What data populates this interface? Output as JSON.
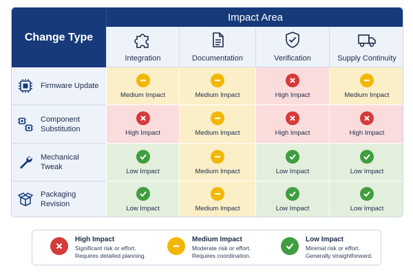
{
  "corner_label": "Change Type",
  "area_title": "Impact Area",
  "columns": [
    {
      "label": "Integration",
      "icon": "puzzle-icon"
    },
    {
      "label": "Documentation",
      "icon": "document-icon"
    },
    {
      "label": "Verification",
      "icon": "shield-check-icon"
    },
    {
      "label": "Supply Continuity",
      "icon": "truck-icon"
    }
  ],
  "rows": [
    {
      "label": "Firmware Update",
      "icon": "chip-icon",
      "cells": [
        {
          "level": "medium",
          "text": "Medium Impact"
        },
        {
          "level": "medium",
          "text": "Medium Impact"
        },
        {
          "level": "high",
          "text": "High Impact"
        },
        {
          "level": "medium",
          "text": "Medium Impact"
        }
      ]
    },
    {
      "label": "Component Substitution",
      "icon": "components-icon",
      "cells": [
        {
          "level": "high",
          "text": "High Impact"
        },
        {
          "level": "medium",
          "text": "Medium Impact"
        },
        {
          "level": "high",
          "text": "High Impact"
        },
        {
          "level": "high",
          "text": "High Impact"
        }
      ]
    },
    {
      "label": "Mechanical Tweak",
      "icon": "wrench-icon",
      "cells": [
        {
          "level": "low",
          "text": "Low Impact"
        },
        {
          "level": "medium",
          "text": "Medium Impact"
        },
        {
          "level": "low",
          "text": "Low Impact"
        },
        {
          "level": "low",
          "text": "Low Impact"
        }
      ]
    },
    {
      "label": "Packaging Revision",
      "icon": "box-icon",
      "cells": [
        {
          "level": "low",
          "text": "Low Impact"
        },
        {
          "level": "medium",
          "text": "Medium Impact"
        },
        {
          "level": "low",
          "text": "Low Impact"
        },
        {
          "level": "low",
          "text": "Low Impact"
        }
      ]
    }
  ],
  "legend": [
    {
      "level": "high",
      "title": "High Impact",
      "line1": "Significant risk or effort.",
      "line2": "Requires detailed planning."
    },
    {
      "level": "medium",
      "title": "Medium Impact",
      "line1": "Moderate risk or effort.",
      "line2": "Requires coordination."
    },
    {
      "level": "low",
      "title": "Low Impact",
      "line1": "Minimal risk or effort.",
      "line2": "Generally straightforward."
    }
  ],
  "colors": {
    "header_navy": "#163a7a",
    "high": "#d63a3a",
    "medium": "#f2b705",
    "low": "#3f9e3f",
    "high_bg": "#fbdcdc",
    "medium_bg": "#fbefc8",
    "low_bg": "#e3efdd"
  }
}
